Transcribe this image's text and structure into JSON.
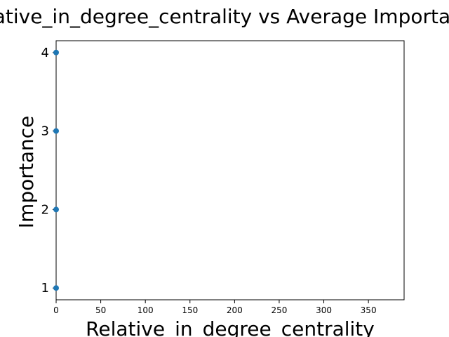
{
  "chart_data": {
    "type": "scatter",
    "title": "Relative_in_degree_centrality vs Average Importance",
    "xlabel": "Relative_in_degree_centrality",
    "ylabel": "Importance",
    "xlim": [
      0,
      390
    ],
    "ylim": [
      0.85,
      4.15
    ],
    "xticks": [
      0,
      50,
      100,
      150,
      200,
      250,
      300,
      350
    ],
    "yticks": [
      1,
      2,
      3,
      4
    ],
    "grid": false,
    "points": [
      {
        "x": 0,
        "y": 1
      },
      {
        "x": 0,
        "y": 2
      },
      {
        "x": 0,
        "y": 3
      },
      {
        "x": 0,
        "y": 4
      }
    ],
    "colors": {
      "marker": "#1f77b4",
      "axes": "#000000"
    }
  }
}
